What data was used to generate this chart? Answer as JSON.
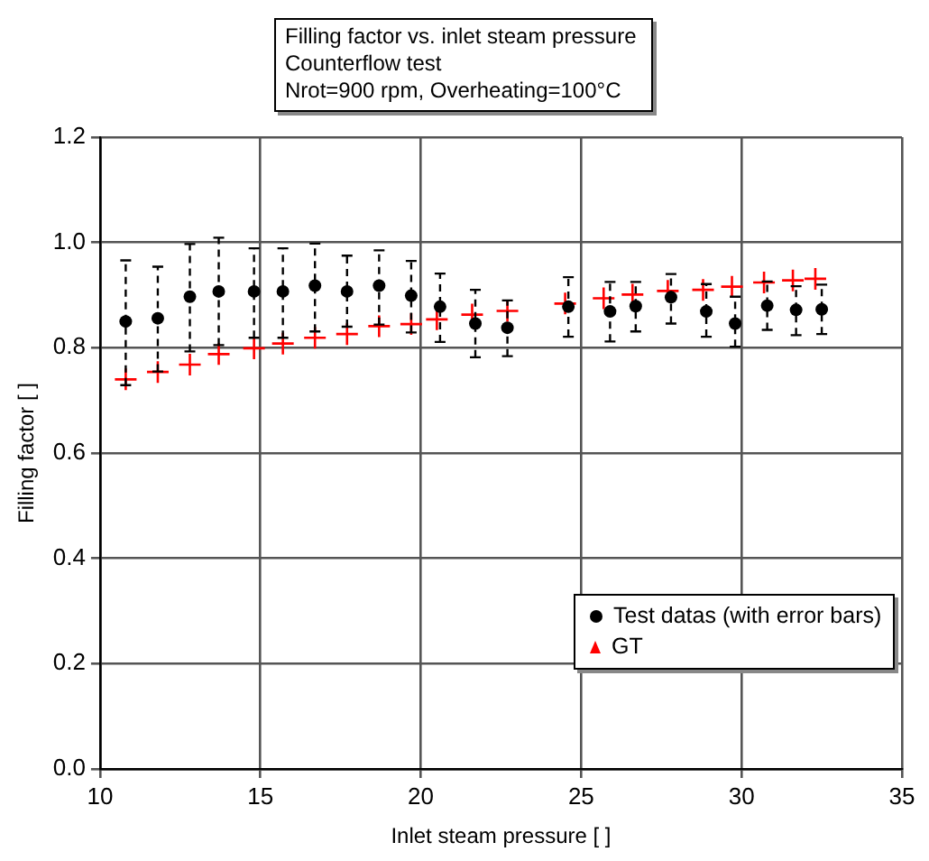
{
  "chart_data": {
    "type": "scatter",
    "title": "Filling factor vs. inlet steam pressure",
    "subtitle": "Counterflow test",
    "annotations": [
      "Nrot=900 rpm, Overheating=100°C"
    ],
    "xlabel": "Inlet steam pressure [ ]",
    "ylabel": "Filling factor [ ]",
    "xlim": [
      10,
      35
    ],
    "xticks": [
      10,
      15,
      20,
      25,
      30,
      35
    ],
    "ylim": [
      0,
      1.2
    ],
    "yticks": [
      {
        "value": 0,
        "label": "0.0"
      },
      {
        "value": 0.2,
        "label": "0.2"
      },
      {
        "value": 0.4,
        "label": "0.4"
      },
      {
        "value": 0.6,
        "label": "0.6"
      },
      {
        "value": 0.8,
        "label": "0.8"
      },
      {
        "value": 1,
        "label": "1.0"
      },
      {
        "value": 1.2,
        "label": "1.2"
      }
    ],
    "grid": true,
    "legend": "bottom right",
    "series": [
      {
        "name": "Test datas (with error bars)",
        "color": "#000000",
        "marker": "circle",
        "x": [
          10.8,
          11.8,
          12.8,
          13.7,
          14.8,
          15.7,
          16.7,
          17.7,
          18.7,
          19.7,
          20.6,
          21.7,
          22.7,
          24.6,
          25.9,
          26.7,
          27.8,
          28.9,
          29.8,
          30.8,
          31.7,
          32.5
        ],
        "values": [
          0.85,
          0.856,
          0.897,
          0.907,
          0.907,
          0.907,
          0.918,
          0.907,
          0.918,
          0.899,
          0.878,
          0.846,
          0.838,
          0.878,
          0.869,
          0.879,
          0.896,
          0.869,
          0.846,
          0.88,
          0.872,
          0.873
        ],
        "errors": [
          [
            0.729,
            0.966
          ],
          [
            0.755,
            0.954
          ],
          [
            0.793,
            0.997
          ],
          [
            0.805,
            1.009
          ],
          [
            0.819,
            0.989
          ],
          [
            0.819,
            0.989
          ],
          [
            0.831,
            0.998
          ],
          [
            0.84,
            0.975
          ],
          [
            0.844,
            0.985
          ],
          [
            0.829,
            0.965
          ],
          [
            0.811,
            0.941
          ],
          [
            0.782,
            0.91
          ],
          [
            0.784,
            0.89
          ],
          [
            0.821,
            0.934
          ],
          [
            0.812,
            0.925
          ],
          [
            0.831,
            0.925
          ],
          [
            0.846,
            0.94
          ],
          [
            0.821,
            0.921
          ],
          [
            0.802,
            0.897
          ],
          [
            0.834,
            0.926
          ],
          [
            0.824,
            0.917
          ],
          [
            0.826,
            0.92
          ]
        ]
      },
      {
        "name": "GT",
        "color": "#ff0000",
        "marker": "cross",
        "x": [
          10.8,
          11.8,
          12.8,
          13.7,
          14.8,
          15.7,
          16.7,
          17.7,
          18.7,
          19.7,
          20.5,
          21.6,
          22.7,
          24.5,
          25.7,
          26.6,
          27.7,
          28.8,
          29.7,
          30.7,
          31.6,
          32.3
        ],
        "values": [
          0.74,
          0.754,
          0.768,
          0.788,
          0.799,
          0.808,
          0.819,
          0.826,
          0.841,
          0.845,
          0.854,
          0.863,
          0.87,
          0.884,
          0.894,
          0.901,
          0.908,
          0.91,
          0.916,
          0.924,
          0.928,
          0.931
        ]
      }
    ]
  }
}
